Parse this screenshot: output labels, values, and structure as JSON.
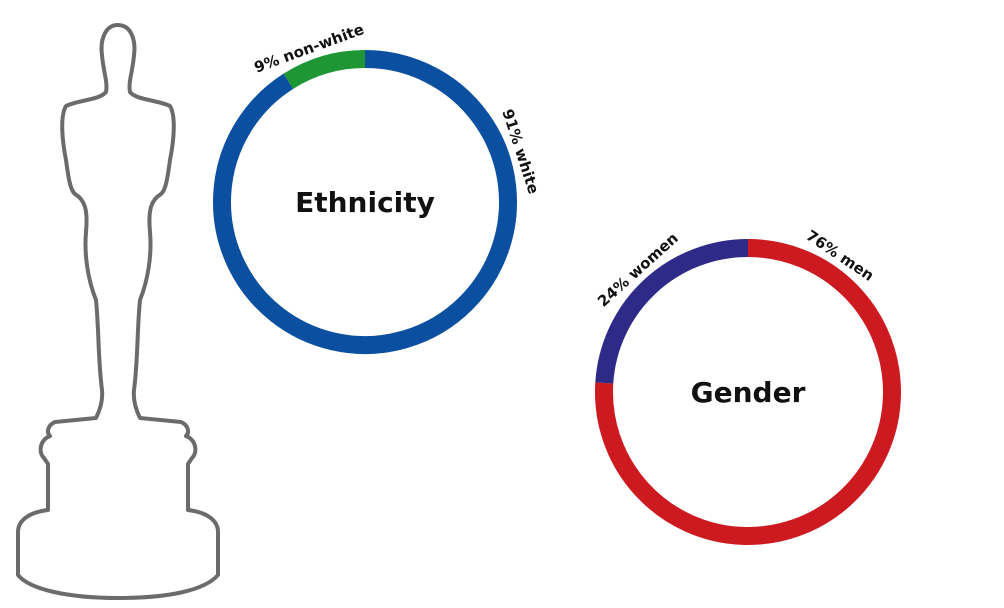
{
  "chart_data": [
    {
      "type": "donut",
      "title": "Ethnicity",
      "values": [
        91,
        9
      ],
      "value_labels": [
        "91% white",
        "9% non-white"
      ],
      "colors": [
        "#0b50a0",
        "#1e9634"
      ]
    },
    {
      "type": "donut",
      "title": "Gender",
      "values": [
        76,
        24
      ],
      "value_labels": [
        "76% men",
        "24% women"
      ],
      "colors": [
        "#cc1a20",
        "#2e2a88"
      ]
    }
  ]
}
